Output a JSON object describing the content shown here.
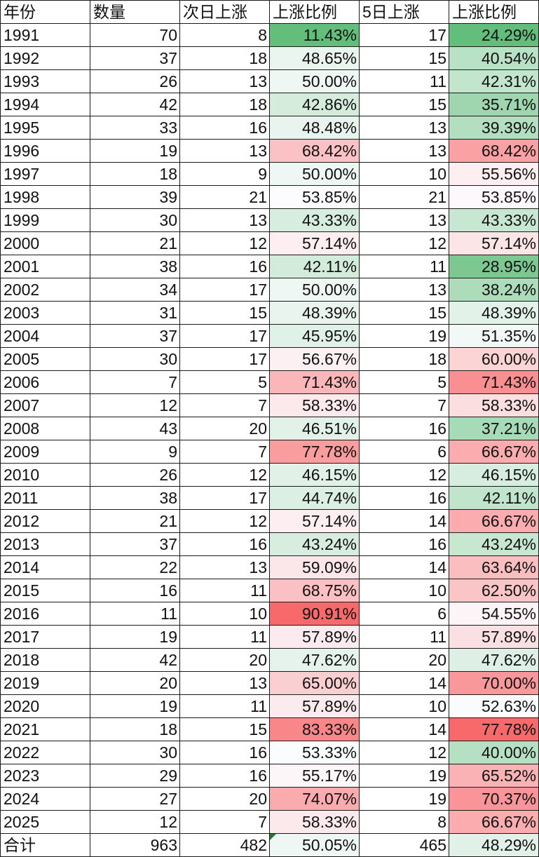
{
  "headers": [
    "年份",
    "数量",
    "次日上涨",
    "上涨比例",
    "5日上涨",
    "上涨比例"
  ],
  "rows": [
    [
      "1991",
      "70",
      "8",
      "11.43%",
      "17",
      "24.29%"
    ],
    [
      "1992",
      "37",
      "18",
      "48.65%",
      "15",
      "40.54%"
    ],
    [
      "1993",
      "26",
      "13",
      "50.00%",
      "11",
      "42.31%"
    ],
    [
      "1994",
      "42",
      "18",
      "42.86%",
      "15",
      "35.71%"
    ],
    [
      "1995",
      "33",
      "16",
      "48.48%",
      "13",
      "39.39%"
    ],
    [
      "1996",
      "19",
      "13",
      "68.42%",
      "13",
      "68.42%"
    ],
    [
      "1997",
      "18",
      "9",
      "50.00%",
      "10",
      "55.56%"
    ],
    [
      "1998",
      "39",
      "21",
      "53.85%",
      "21",
      "53.85%"
    ],
    [
      "1999",
      "30",
      "13",
      "43.33%",
      "13",
      "43.33%"
    ],
    [
      "2000",
      "21",
      "12",
      "57.14%",
      "12",
      "57.14%"
    ],
    [
      "2001",
      "38",
      "16",
      "42.11%",
      "11",
      "28.95%"
    ],
    [
      "2002",
      "34",
      "17",
      "50.00%",
      "13",
      "38.24%"
    ],
    [
      "2003",
      "31",
      "15",
      "48.39%",
      "15",
      "48.39%"
    ],
    [
      "2004",
      "37",
      "17",
      "45.95%",
      "19",
      "51.35%"
    ],
    [
      "2005",
      "30",
      "17",
      "56.67%",
      "18",
      "60.00%"
    ],
    [
      "2006",
      "7",
      "5",
      "71.43%",
      "5",
      "71.43%"
    ],
    [
      "2007",
      "12",
      "7",
      "58.33%",
      "7",
      "58.33%"
    ],
    [
      "2008",
      "43",
      "20",
      "46.51%",
      "16",
      "37.21%"
    ],
    [
      "2009",
      "9",
      "7",
      "77.78%",
      "6",
      "66.67%"
    ],
    [
      "2010",
      "26",
      "12",
      "46.15%",
      "12",
      "46.15%"
    ],
    [
      "2011",
      "38",
      "17",
      "44.74%",
      "16",
      "42.11%"
    ],
    [
      "2012",
      "21",
      "12",
      "57.14%",
      "14",
      "66.67%"
    ],
    [
      "2013",
      "37",
      "16",
      "43.24%",
      "16",
      "43.24%"
    ],
    [
      "2014",
      "22",
      "13",
      "59.09%",
      "14",
      "63.64%"
    ],
    [
      "2015",
      "16",
      "11",
      "68.75%",
      "10",
      "62.50%"
    ],
    [
      "2016",
      "11",
      "10",
      "90.91%",
      "6",
      "54.55%"
    ],
    [
      "2017",
      "19",
      "11",
      "57.89%",
      "11",
      "57.89%"
    ],
    [
      "2018",
      "42",
      "20",
      "47.62%",
      "20",
      "47.62%"
    ],
    [
      "2019",
      "20",
      "13",
      "65.00%",
      "14",
      "70.00%"
    ],
    [
      "2020",
      "19",
      "11",
      "57.89%",
      "10",
      "52.63%"
    ],
    [
      "2021",
      "18",
      "15",
      "83.33%",
      "14",
      "77.78%"
    ],
    [
      "2022",
      "30",
      "16",
      "53.33%",
      "12",
      "40.00%"
    ],
    [
      "2023",
      "29",
      "16",
      "55.17%",
      "19",
      "65.52%"
    ],
    [
      "2024",
      "27",
      "20",
      "74.07%",
      "19",
      "70.37%"
    ],
    [
      "2025",
      "12",
      "7",
      "58.33%",
      "8",
      "66.67%"
    ]
  ],
  "total": [
    "合计",
    "963",
    "482",
    "50.05%",
    "465",
    "48.29%"
  ],
  "color_scale": {
    "low": "#63BE7B",
    "mid": "#FCFCFF",
    "high": "#F8696B",
    "columns": [
      3,
      5
    ]
  }
}
